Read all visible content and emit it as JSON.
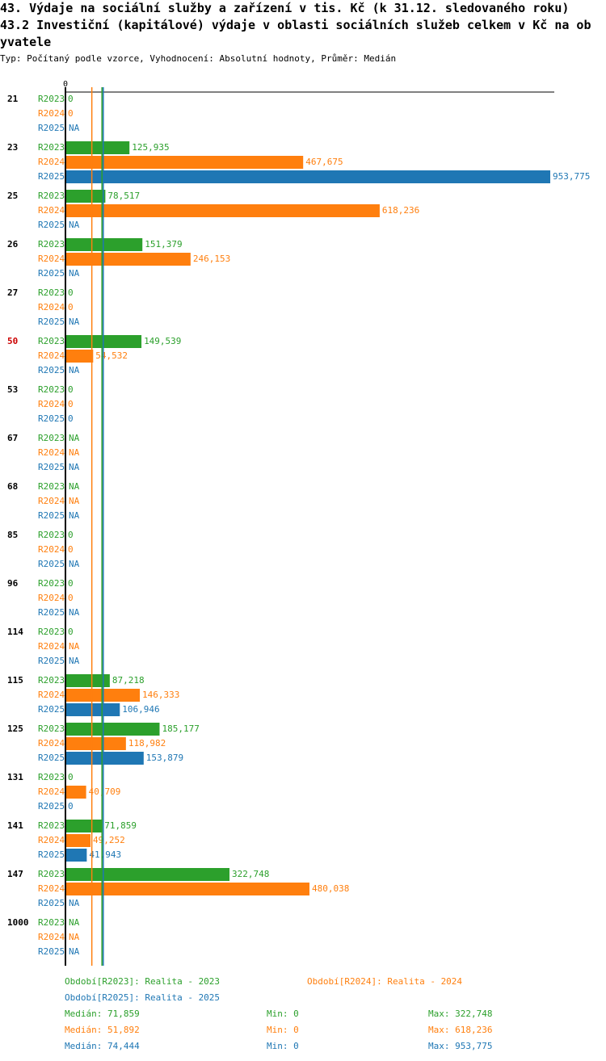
{
  "title": "43. Výdaje na sociální služby a zařízení v tis. Kč (k 31.12. sledovaného roku)",
  "subtitle_line1": "43.2 Investiční (kapitálové) výdaje v oblasti sociálních služeb celkem v Kč na ob",
  "subtitle_line2": "yvatele",
  "type_line": "Typ: Počítaný podle vzorce, Vyhodnocení: Absolutní hodnoty, Průměr: Medián",
  "colors": {
    "R2023": "#2ca02c",
    "R2024": "#ff7f0e",
    "R2025": "#1f77b4",
    "highlight": "#cc0000"
  },
  "chart_data": {
    "type": "bar",
    "orientation": "horizontal",
    "axis_label_zero": "0",
    "xlim": [
      0,
      953775
    ],
    "series_names": [
      "R2023",
      "R2024",
      "R2025"
    ],
    "highlight_category": "50",
    "categories": [
      {
        "label": "21",
        "values": [
          0,
          0,
          null
        ]
      },
      {
        "label": "23",
        "values": [
          125935,
          467675,
          953775
        ]
      },
      {
        "label": "25",
        "values": [
          78517,
          618236,
          null
        ]
      },
      {
        "label": "26",
        "values": [
          151379,
          246153,
          null
        ]
      },
      {
        "label": "27",
        "values": [
          0,
          0,
          null
        ]
      },
      {
        "label": "50",
        "values": [
          149539,
          54532,
          null
        ]
      },
      {
        "label": "53",
        "values": [
          0,
          0,
          0
        ]
      },
      {
        "label": "67",
        "values": [
          null,
          null,
          null
        ]
      },
      {
        "label": "68",
        "values": [
          null,
          null,
          null
        ]
      },
      {
        "label": "85",
        "values": [
          0,
          0,
          null
        ]
      },
      {
        "label": "96",
        "values": [
          0,
          0,
          null
        ]
      },
      {
        "label": "114",
        "values": [
          0,
          null,
          null
        ]
      },
      {
        "label": "115",
        "values": [
          87218,
          146333,
          106946
        ]
      },
      {
        "label": "125",
        "values": [
          185177,
          118982,
          153879
        ]
      },
      {
        "label": "131",
        "values": [
          0,
          40709,
          0
        ]
      },
      {
        "label": "141",
        "values": [
          71859,
          49252,
          41943
        ]
      },
      {
        "label": "147",
        "values": [
          322748,
          480038,
          null
        ]
      },
      {
        "label": "1000",
        "values": [
          null,
          null,
          null
        ]
      }
    ],
    "medians": [
      71859,
      51892,
      74444
    ],
    "na_label": "NA"
  },
  "legend": {
    "r2023": "Období[R2023]: Realita - 2023",
    "r2024": "Období[R2024]: Realita - 2024",
    "r2025": "Období[R2025]: Realita - 2025"
  },
  "stats": [
    {
      "median": "Medián: 71,859",
      "min": "Min: 0",
      "max": "Max: 322,748"
    },
    {
      "median": "Medián: 51,892",
      "min": "Min: 0",
      "max": "Max: 618,236"
    },
    {
      "median": "Medián: 74,444",
      "min": "Min: 0",
      "max": "Max: 953,775"
    }
  ]
}
